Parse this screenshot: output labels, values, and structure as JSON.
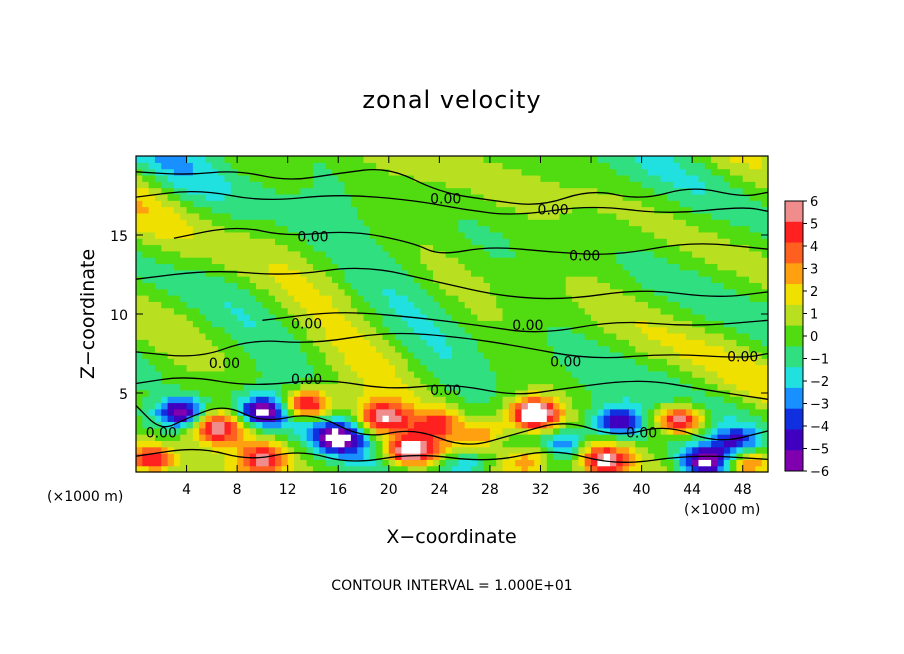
{
  "title": "zonal velocity",
  "footer": "CONTOUR INTERVAL = 1.000E+01",
  "chart_data": {
    "type": "heatmap",
    "title": "zonal velocity",
    "xlabel": "X−coordinate",
    "ylabel": "Z−coordinate",
    "x_unit_left": "(×1000 m)",
    "x_unit_right": "(×1000 m)",
    "xlim": [
      0,
      50
    ],
    "ylim": [
      0,
      20
    ],
    "x_ticks": [
      4,
      8,
      12,
      16,
      20,
      24,
      28,
      32,
      36,
      40,
      44,
      48
    ],
    "y_ticks": [
      5,
      10,
      15
    ],
    "colorbar": {
      "ticks": [
        "6",
        "5",
        "4",
        "3",
        "2",
        "1",
        "0",
        "−1",
        "−2",
        "−3",
        "−4",
        "−5",
        "−6"
      ],
      "values": [
        6,
        5,
        4,
        3,
        2,
        1,
        0,
        -1,
        -2,
        -3,
        -4,
        -5,
        -6
      ],
      "colors": [
        "#f08c8c",
        "#ff2020",
        "#ff6020",
        "#ffa010",
        "#f0e000",
        "#b8e020",
        "#50dc10",
        "#30e080",
        "#20e0e0",
        "#1890ff",
        "#1030e0",
        "#4000c0",
        "#8000b0"
      ]
    },
    "contour_labels": [
      {
        "text": "0.00",
        "x": 24.5,
        "y": 17.3
      },
      {
        "text": "0.00",
        "x": 14.0,
        "y": 14.9
      },
      {
        "text": "0.00",
        "x": 33.0,
        "y": 16.6
      },
      {
        "text": "0.00",
        "x": 35.5,
        "y": 13.7
      },
      {
        "text": "0.00",
        "x": 13.5,
        "y": 9.4
      },
      {
        "text": "0.00",
        "x": 31.0,
        "y": 9.3
      },
      {
        "text": "0.00",
        "x": 7.0,
        "y": 6.9
      },
      {
        "text": "0.00",
        "x": 13.5,
        "y": 5.9
      },
      {
        "text": "0.00",
        "x": 34.0,
        "y": 7.0
      },
      {
        "text": "0.00",
        "x": 48.0,
        "y": 7.3
      },
      {
        "text": "0.00",
        "x": 24.5,
        "y": 5.2
      },
      {
        "text": "0.00",
        "x": 2.0,
        "y": 2.5
      },
      {
        "text": "0.00",
        "x": 40.0,
        "y": 2.5
      }
    ]
  }
}
